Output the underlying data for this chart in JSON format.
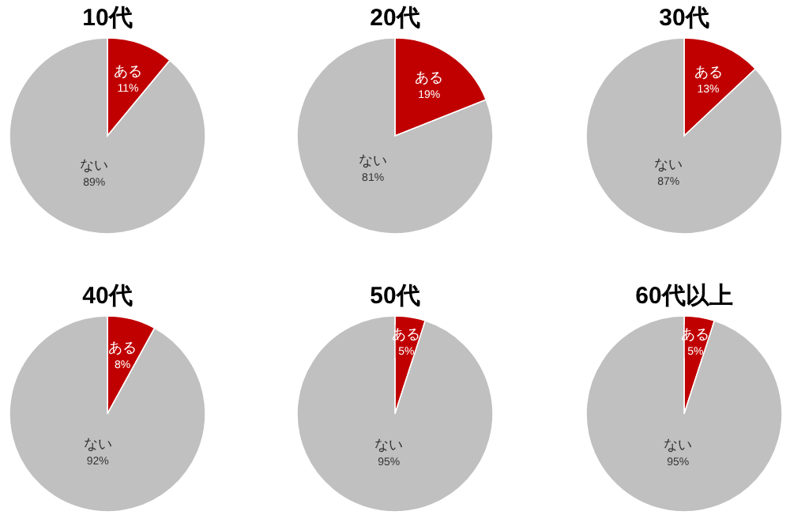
{
  "chart_data": [
    {
      "type": "pie",
      "title": "10代",
      "categories": [
        "ある",
        "ない"
      ],
      "values": [
        11,
        89
      ],
      "colors": [
        "#c00000",
        "#c0c0c0"
      ],
      "value_labels": [
        "11%",
        "89%"
      ]
    },
    {
      "type": "pie",
      "title": "20代",
      "categories": [
        "ある",
        "ない"
      ],
      "values": [
        19,
        81
      ],
      "colors": [
        "#c00000",
        "#c0c0c0"
      ],
      "value_labels": [
        "19%",
        "81%"
      ]
    },
    {
      "type": "pie",
      "title": "30代",
      "categories": [
        "ある",
        "ない"
      ],
      "values": [
        13,
        87
      ],
      "colors": [
        "#c00000",
        "#c0c0c0"
      ],
      "value_labels": [
        "13%",
        "87%"
      ]
    },
    {
      "type": "pie",
      "title": "40代",
      "categories": [
        "ある",
        "ない"
      ],
      "values": [
        8,
        92
      ],
      "colors": [
        "#c00000",
        "#c0c0c0"
      ],
      "value_labels": [
        "8%",
        "92%"
      ]
    },
    {
      "type": "pie",
      "title": "50代",
      "categories": [
        "ある",
        "ない"
      ],
      "values": [
        5,
        95
      ],
      "colors": [
        "#c00000",
        "#c0c0c0"
      ],
      "value_labels": [
        "5%",
        "95%"
      ]
    },
    {
      "type": "pie",
      "title": "60代以上",
      "categories": [
        "ある",
        "ない"
      ],
      "values": [
        5,
        95
      ],
      "colors": [
        "#c00000",
        "#c0c0c0"
      ],
      "value_labels": [
        "5%",
        "95%"
      ]
    }
  ]
}
